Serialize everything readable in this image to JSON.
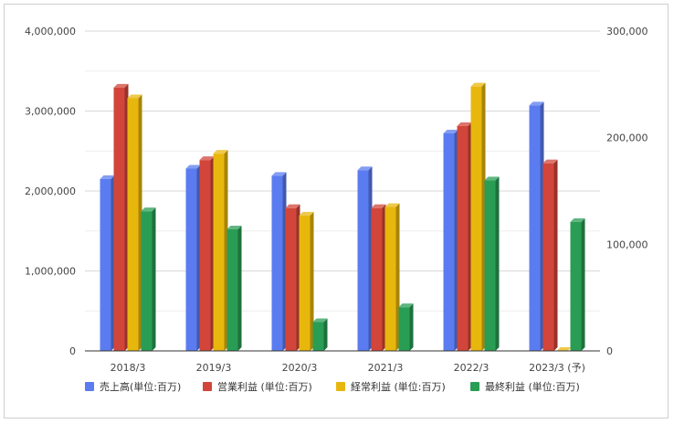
{
  "chart_data": {
    "type": "bar",
    "style": "3d-grouped",
    "categories": [
      "2018/3",
      "2019/3",
      "2020/3",
      "2021/3",
      "2022/3",
      "2023/3 (予)"
    ],
    "series": [
      {
        "name": "売上高(単位:百万)",
        "axis": "left",
        "color": "#5b7cf0",
        "values": [
          2150000,
          2280000,
          2190000,
          2260000,
          2720000,
          3070000
        ]
      },
      {
        "name": "営業利益 (単位:百万)",
        "axis": "right",
        "color": "#d2453a",
        "values": [
          247000,
          179000,
          134000,
          134000,
          211000,
          176000
        ]
      },
      {
        "name": "経常利益 (単位:百万)",
        "axis": "right",
        "color": "#e8b70e",
        "values": [
          237000,
          185000,
          127000,
          135000,
          248000,
          0
        ]
      },
      {
        "name": "最終利益 (単位:百万)",
        "axis": "right",
        "color": "#2a9d55",
        "values": [
          131000,
          114000,
          27000,
          41000,
          160000,
          121000
        ]
      }
    ],
    "y_left": {
      "min": 0,
      "max": 4000000,
      "ticks": [
        0,
        1000000,
        2000000,
        3000000,
        4000000
      ],
      "tick_labels": [
        "0",
        "1,000,000",
        "2,000,000",
        "3,000,000",
        "4,000,000"
      ]
    },
    "y_right": {
      "min": 0,
      "max": 300000,
      "ticks": [
        0,
        100000,
        200000,
        300000
      ],
      "tick_labels": [
        "0",
        "100,000",
        "200,000",
        "300,000"
      ]
    },
    "grid": true,
    "legend_position": "bottom"
  }
}
